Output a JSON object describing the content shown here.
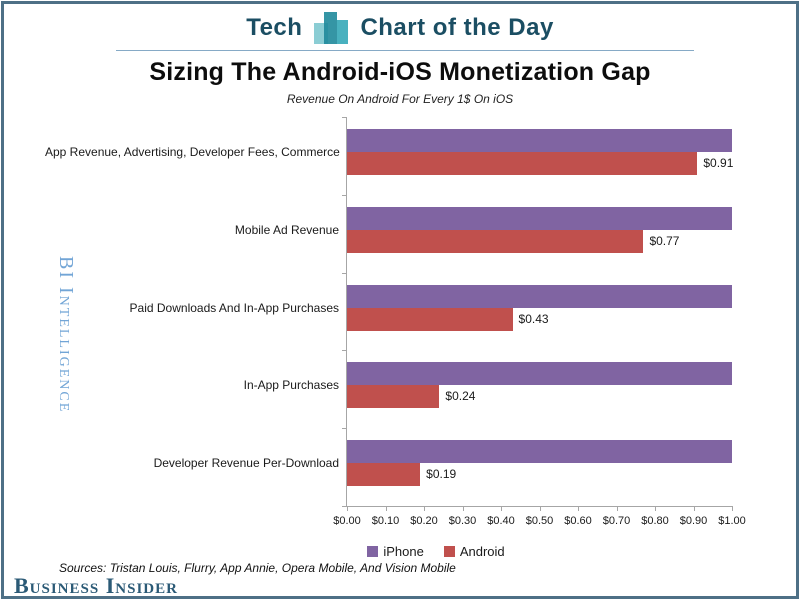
{
  "header": {
    "brand_left": "Tech",
    "brand_right": "Chart of the Day",
    "text_color": "#1b4e63",
    "logo_colors": [
      "#7ec8cf",
      "#1f8a9b",
      "#35a9b8"
    ]
  },
  "chart_data": {
    "type": "bar",
    "orientation": "horizontal",
    "title": "Sizing The Android-iOS Monetization Gap",
    "subtitle": "Revenue On Android For Every 1$ On iOS",
    "categories": [
      "App Revenue, Advertising, Developer Fees, Commerce",
      "Mobile Ad Revenue",
      "Paid Downloads And In-App Purchases",
      "In-App Purchases",
      "Developer Revenue Per-Download"
    ],
    "series": [
      {
        "name": "iPhone",
        "color": "#8064A2",
        "values": [
          1.0,
          1.0,
          1.0,
          1.0,
          1.0
        ],
        "data_labels": [
          "",
          "",
          "",
          "",
          ""
        ]
      },
      {
        "name": "Android",
        "color": "#C0504D",
        "values": [
          0.91,
          0.77,
          0.43,
          0.24,
          0.19
        ],
        "data_labels": [
          "$0.91",
          "$0.77",
          "$0.43",
          "$0.24",
          "$0.19"
        ]
      }
    ],
    "xlim": [
      0,
      1
    ],
    "x_tick_labels": [
      "$0.00",
      "$0.10",
      "$0.20",
      "$0.30",
      "$0.40",
      "$0.50",
      "$0.60",
      "$0.70",
      "$0.80",
      "$0.90",
      "$1.00"
    ],
    "grid": false,
    "legend_position": "bottom",
    "axis_color": "#a6a6a6"
  },
  "branding": {
    "watermark": "BI Intelligence",
    "watermark_color": "#72a5d6",
    "logo_text": "Business Insider",
    "logo_color": "#2b5a76"
  },
  "footer": {
    "sources": "Sources: Tristan Louis, Flurry, App Annie, Opera Mobile, And Vision Mobile"
  }
}
